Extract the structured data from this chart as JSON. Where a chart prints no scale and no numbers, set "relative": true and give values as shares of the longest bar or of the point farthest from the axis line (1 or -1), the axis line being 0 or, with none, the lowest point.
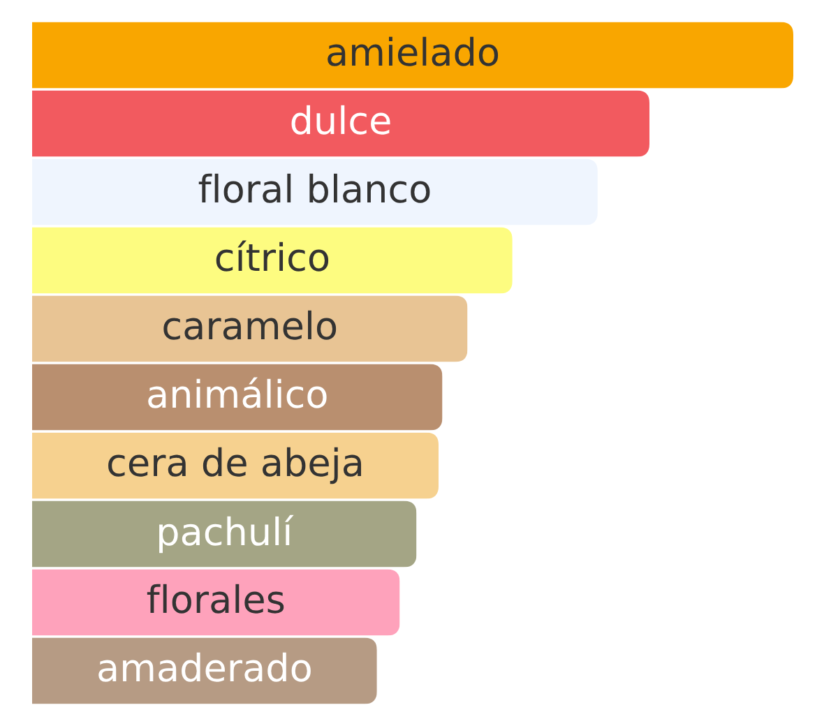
{
  "chart_data": {
    "type": "bar",
    "orientation": "horizontal",
    "relative": true,
    "categories": [
      "amielado",
      "dulce",
      "floral blanco",
      "cítrico",
      "caramelo",
      "animálico",
      "cera de abeja",
      "pachulí",
      "florales",
      "amaderado"
    ],
    "values": [
      1,
      0.811,
      0.743,
      0.631,
      0.572,
      0.539,
      0.534,
      0.505,
      0.483,
      0.453
    ],
    "colors": [
      "#f9a600",
      "#f25a5f",
      "#eff5fe",
      "#fdfc80",
      "#e8c494",
      "#b98f6f",
      "#f6d18f",
      "#a4a585",
      "#fea2bb",
      "#b69b84"
    ]
  }
}
